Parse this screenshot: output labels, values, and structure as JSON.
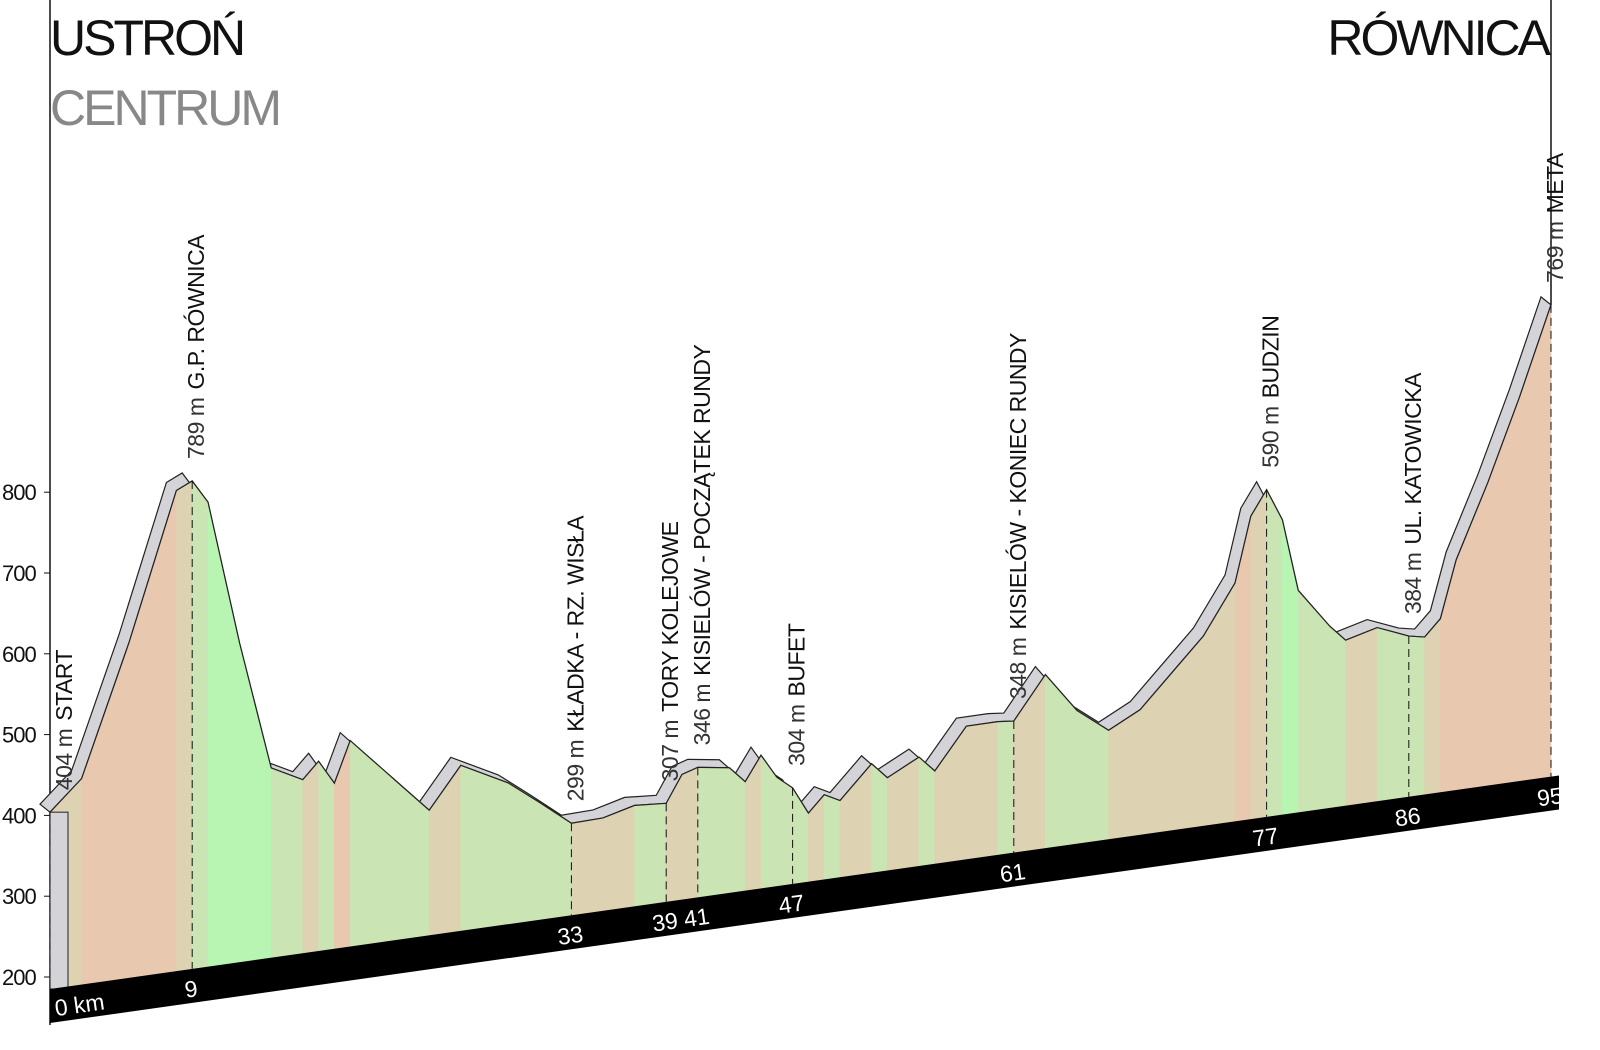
{
  "chart_data": {
    "type": "profile",
    "title": "USTROŃ",
    "subtitle": "CENTRUM",
    "end_title": "RÓWNICA",
    "x": [
      0,
      2,
      5,
      8,
      9,
      10,
      12,
      14,
      16,
      17,
      18,
      19,
      20,
      22,
      24,
      26,
      27,
      29,
      31,
      33,
      35,
      37,
      39,
      40,
      41,
      43,
      44,
      45,
      46,
      47,
      48,
      49,
      50,
      52,
      53,
      55,
      56,
      58,
      60,
      61,
      63,
      65,
      67,
      69,
      71,
      73,
      75,
      76,
      77,
      78,
      79,
      81,
      82,
      84,
      86,
      87,
      88,
      89,
      91,
      93,
      95
    ],
    "values": [
      404,
      440,
      600,
      780,
      789,
      760,
      580,
      420,
      400,
      420,
      390,
      440,
      420,
      380,
      340,
      390,
      380,
      360,
      330,
      299,
      300,
      310,
      307,
      340,
      346,
      340,
      320,
      350,
      320,
      304,
      270,
      290,
      280,
      320,
      300,
      320,
      300,
      350,
      350,
      348,
      400,
      350,
      320,
      340,
      380,
      420,
      480,
      560,
      590,
      550,
      460,
      410,
      390,
      400,
      384,
      380,
      400,
      470,
      560,
      660,
      769
    ],
    "ylim": [
      200,
      800
    ],
    "yticks": [
      200,
      300,
      400,
      500,
      600,
      700,
      800
    ],
    "xlim": [
      0,
      95
    ],
    "xticks": [
      {
        "value": 0,
        "label": "0 km"
      },
      9,
      33,
      39,
      41,
      47,
      61,
      77,
      86,
      95
    ],
    "waypoints": [
      {
        "km": 0,
        "elevation": 404,
        "elevation_label": "404 m",
        "name": "START"
      },
      {
        "km": 9,
        "elevation": 789,
        "elevation_label": "789 m",
        "name": "G.P. RÓWNICA"
      },
      {
        "km": 33,
        "elevation": 299,
        "elevation_label": "299 m",
        "name": "KŁADKA - RZ. WISŁA"
      },
      {
        "km": 39,
        "elevation": 307,
        "elevation_label": "307 m",
        "name": "TORY KOLEJOWE"
      },
      {
        "km": 41,
        "elevation": 346,
        "elevation_label": "346 m",
        "name": "KISIELÓW - POCZĄTEK RUNDY"
      },
      {
        "km": 47,
        "elevation": 304,
        "elevation_label": "304 m",
        "name": "BUFET"
      },
      {
        "km": 61,
        "elevation": 348,
        "elevation_label": "348 m",
        "name": "KISIELÓW - KONIEC RUNDY"
      },
      {
        "km": 77,
        "elevation": 590,
        "elevation_label": "590 m",
        "name": "BUDZIN"
      },
      {
        "km": 86,
        "elevation": 384,
        "elevation_label": "384 m",
        "name": "UL. KATOWICKA"
      },
      {
        "km": 95,
        "elevation": 769,
        "elevation_label": "769 m",
        "name": "META"
      }
    ],
    "climb_color": "#ddd2b2",
    "steep_climb_color": "#e8c9b0",
    "descent_color": "#cbe4b4",
    "steep_descent_color": "#b8f5b2",
    "top_color": "#d3d3d8"
  }
}
